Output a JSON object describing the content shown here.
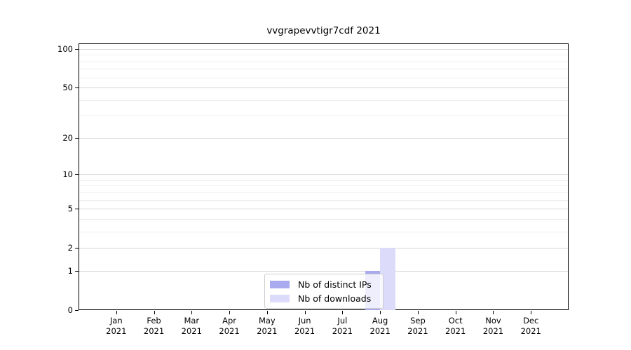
{
  "chart_data": {
    "type": "bar",
    "title": "vvgrapevvtigr7cdf 2021",
    "categories": [
      {
        "month": "Jan",
        "year": "2021"
      },
      {
        "month": "Feb",
        "year": "2021"
      },
      {
        "month": "Mar",
        "year": "2021"
      },
      {
        "month": "Apr",
        "year": "2021"
      },
      {
        "month": "May",
        "year": "2021"
      },
      {
        "month": "Jun",
        "year": "2021"
      },
      {
        "month": "Jul",
        "year": "2021"
      },
      {
        "month": "Aug",
        "year": "2021"
      },
      {
        "month": "Sep",
        "year": "2021"
      },
      {
        "month": "Oct",
        "year": "2021"
      },
      {
        "month": "Nov",
        "year": "2021"
      },
      {
        "month": "Dec",
        "year": "2021"
      }
    ],
    "series": [
      {
        "name": "Nb of distinct IPs",
        "color": "#aaaaee",
        "values": [
          0,
          0,
          0,
          0,
          0,
          0,
          0,
          1,
          0,
          0,
          0,
          0
        ]
      },
      {
        "name": "Nb of downloads",
        "color": "#dcdcfa",
        "values": [
          0,
          0,
          0,
          0,
          0,
          0,
          0,
          2,
          0,
          0,
          0,
          0
        ]
      }
    ],
    "xlabel": "",
    "ylabel": "",
    "yscale": "log(1+y)",
    "ylim": [
      0,
      110.5
    ],
    "yticks": [
      0,
      1,
      2,
      5,
      10,
      20,
      50,
      100
    ],
    "minor_yticks": [
      3,
      4,
      6,
      7,
      8,
      9,
      30,
      40,
      60,
      70,
      80,
      90
    ],
    "grid": true,
    "legend_position": "inside lower center",
    "colors": {
      "major_grid": "#d7d7d7",
      "minor_grid": "#ededed",
      "spine": "#000000",
      "text": "#000000",
      "background": "#ffffff"
    }
  }
}
